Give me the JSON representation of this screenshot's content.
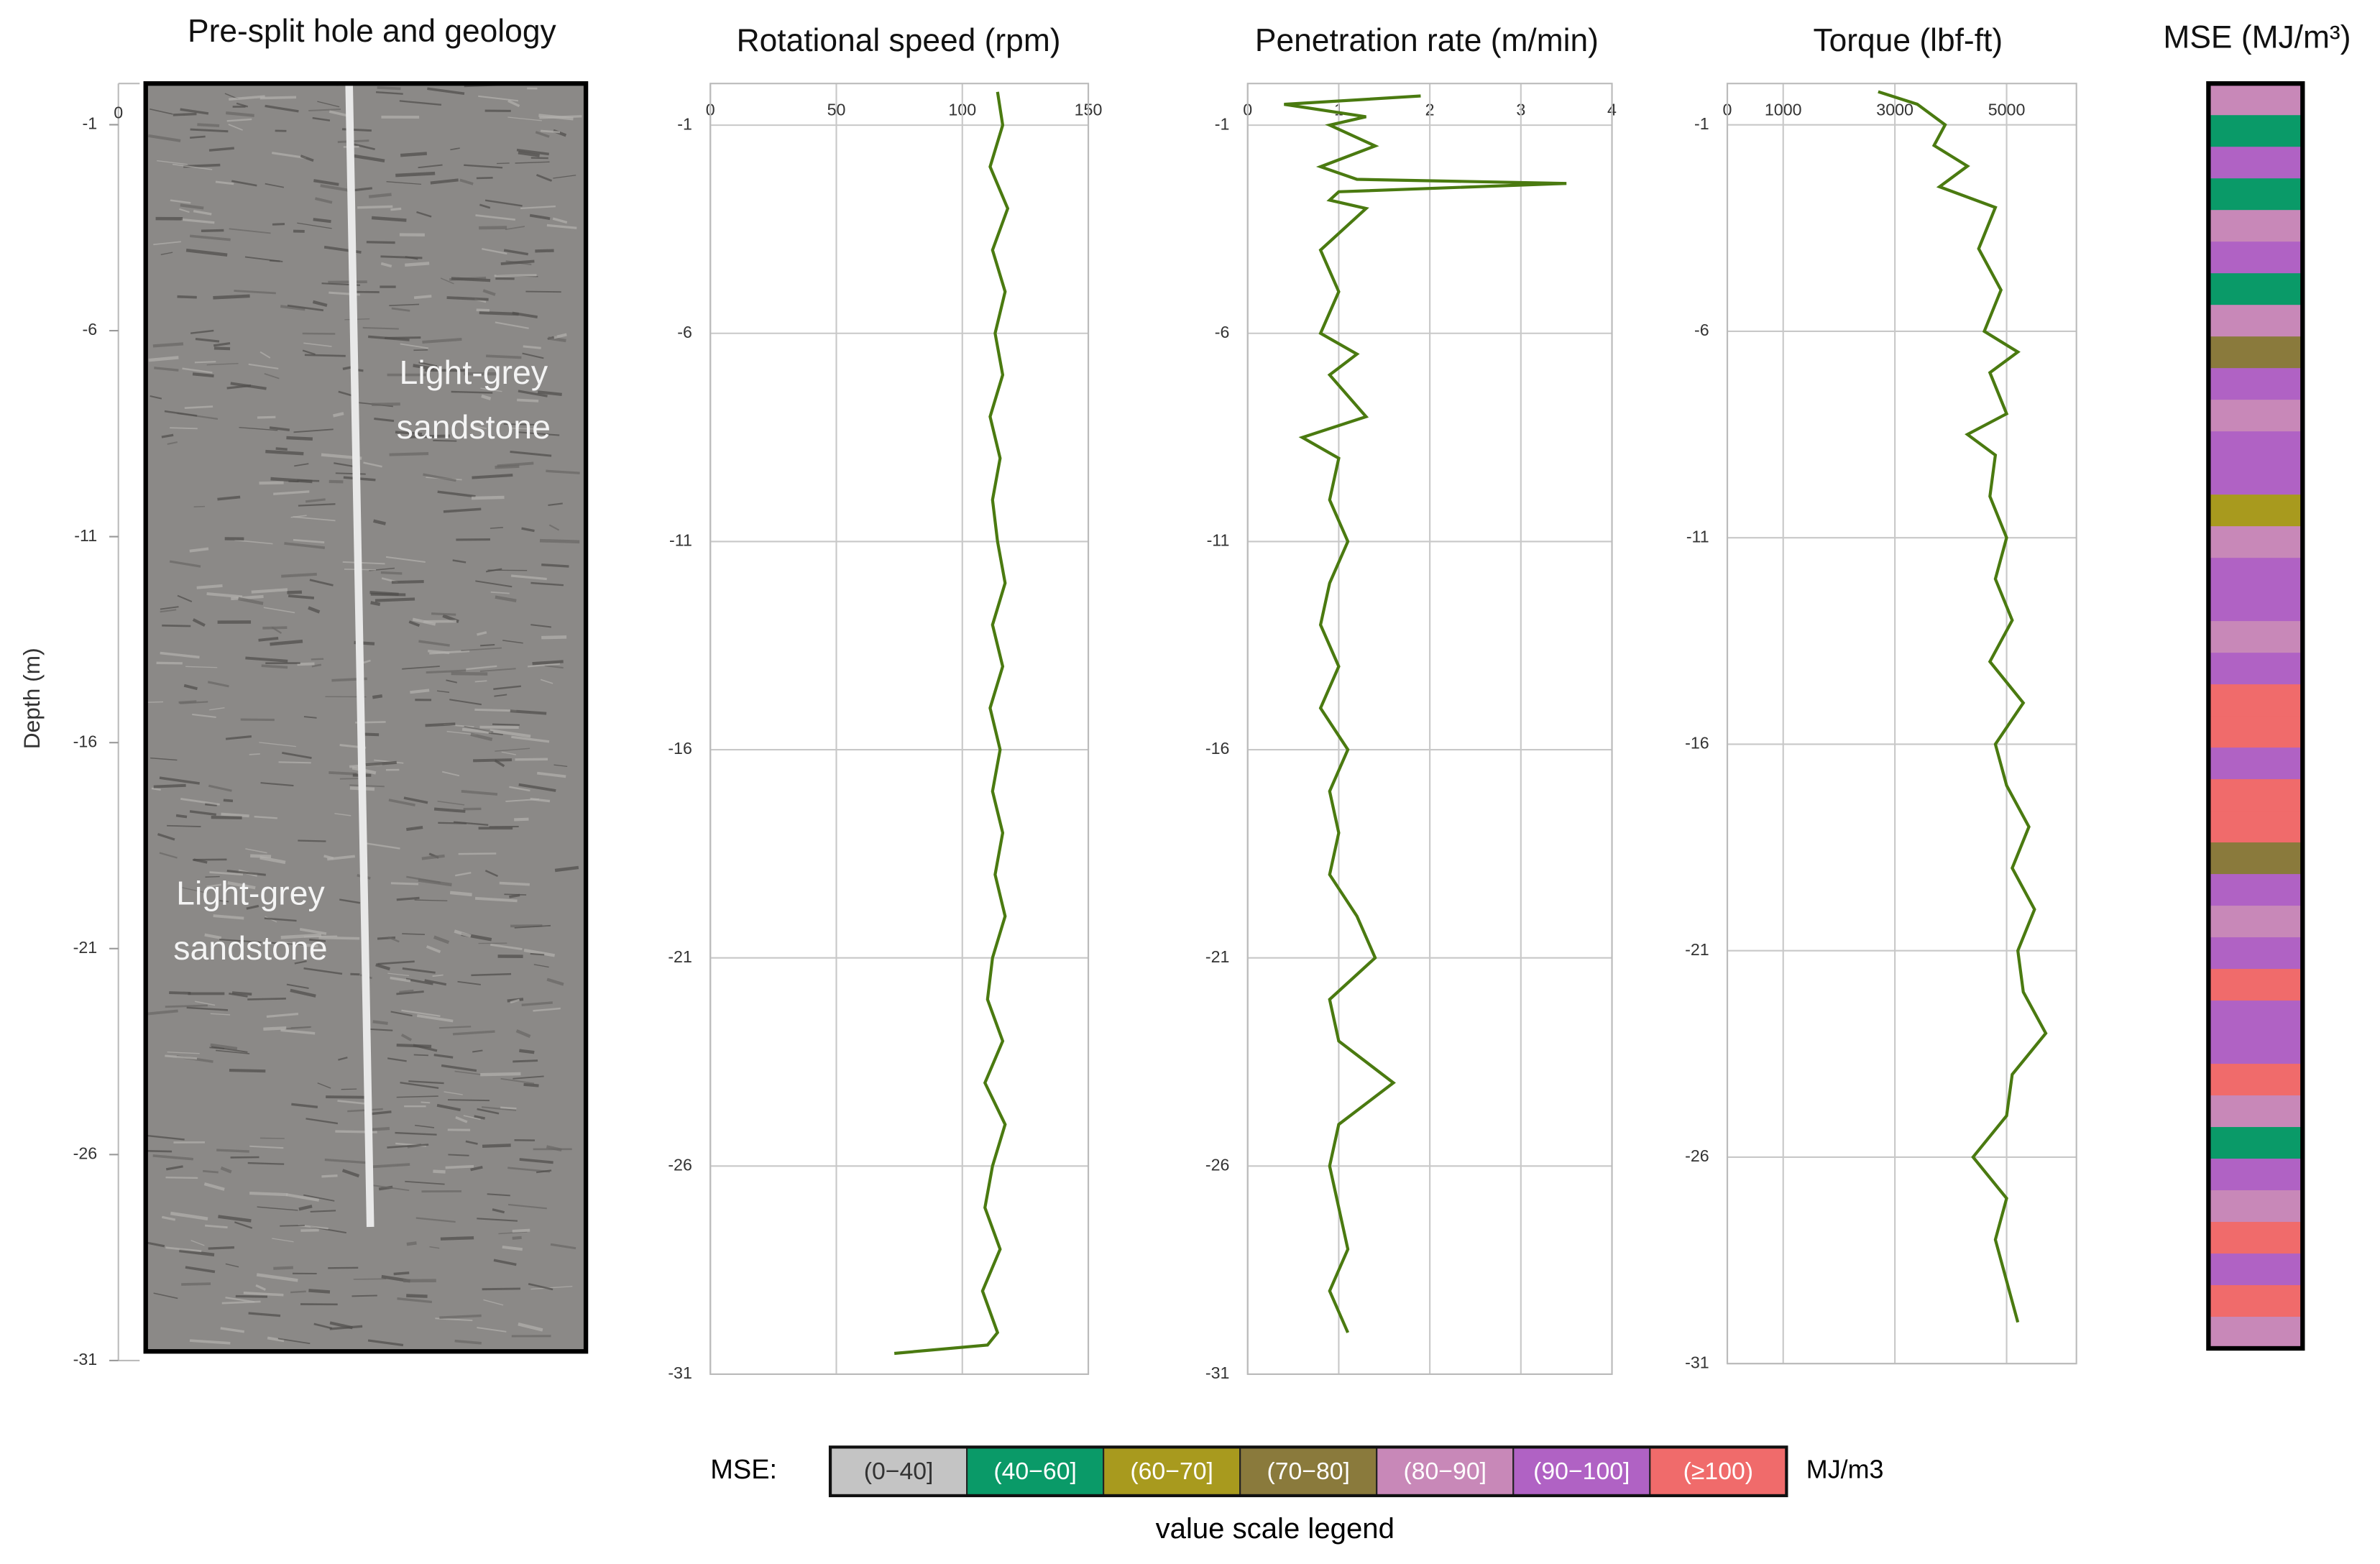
{
  "chart_data": [
    {
      "type": "image",
      "title": "Pre-split hole and geology",
      "ylabel": "Depth (m)",
      "annotations": [
        [
          "Light-grey",
          "sandstone"
        ],
        [
          "Light-grey",
          "sandstone"
        ]
      ],
      "xlim": [
        0,
        1
      ],
      "xticks": [
        0
      ],
      "ylim": [
        -31,
        0
      ],
      "yticks": [
        -1,
        -6,
        -11,
        -16,
        -21,
        -26,
        -31
      ]
    },
    {
      "type": "line",
      "title": "Rotational speed (rpm)",
      "color": "#4a7a10",
      "grid": true,
      "xlim": [
        0,
        150
      ],
      "xticks": [
        0,
        50,
        100,
        150
      ],
      "ylim": [
        -31,
        0
      ],
      "yticks": [
        -1,
        -6,
        -11,
        -16,
        -21,
        -26,
        -31
      ],
      "depth": [
        -0.2,
        -1,
        -2,
        -3,
        -4,
        -5,
        -6,
        -7,
        -8,
        -9,
        -10,
        -11,
        -12,
        -13,
        -14,
        -15,
        -16,
        -17,
        -18,
        -19,
        -20,
        -21,
        -22,
        -23,
        -24,
        -25,
        -26,
        -27,
        -28,
        -29,
        -30,
        -30.3,
        -30.5
      ],
      "values": [
        114,
        116,
        111,
        118,
        112,
        117,
        113,
        116,
        111,
        115,
        112,
        114,
        117,
        112,
        116,
        111,
        115,
        112,
        116,
        113,
        117,
        112,
        110,
        116,
        109,
        117,
        112,
        109,
        115,
        108,
        114,
        110,
        73
      ]
    },
    {
      "type": "line",
      "title": "Penetration rate (m/min)",
      "color": "#4a7a10",
      "grid": true,
      "xlim": [
        0,
        4
      ],
      "xticks": [
        0,
        1,
        2,
        3,
        4
      ],
      "ylim": [
        -31,
        0
      ],
      "yticks": [
        -1,
        -6,
        -11,
        -16,
        -21,
        -26,
        -31
      ],
      "depth": [
        -0.3,
        -0.5,
        -0.8,
        -1,
        -1.5,
        -2,
        -2.3,
        -2.4,
        -2.6,
        -2.8,
        -3,
        -4,
        -5,
        -6,
        -6.5,
        -7,
        -8,
        -8.5,
        -9,
        -10,
        -11,
        -12,
        -13,
        -14,
        -15,
        -16,
        -17,
        -18,
        -19,
        -20,
        -21,
        -22,
        -23,
        -24,
        -25,
        -26,
        -27,
        -28,
        -29,
        -30
      ],
      "values": [
        1.9,
        0.4,
        1.3,
        0.9,
        1.4,
        0.8,
        1.2,
        3.5,
        1.0,
        0.9,
        1.3,
        0.8,
        1.0,
        0.8,
        1.2,
        0.9,
        1.3,
        0.6,
        1.0,
        0.9,
        1.1,
        0.9,
        0.8,
        1.0,
        0.8,
        1.1,
        0.9,
        1.0,
        0.9,
        1.2,
        1.4,
        0.9,
        1.0,
        1.6,
        1.0,
        0.9,
        1.0,
        1.1,
        0.9,
        1.1
      ]
    },
    {
      "type": "line",
      "title": "Torque (lbf-ft)",
      "color": "#4a7a10",
      "grid": true,
      "xlim": [
        0,
        6250
      ],
      "xticks": [
        0,
        1000,
        3000,
        5000
      ],
      "ylim": [
        -31,
        0
      ],
      "yticks": [
        -1,
        -6,
        -11,
        -16,
        -21,
        -26,
        -31
      ],
      "depth": [
        -0.2,
        -0.5,
        -1,
        -1.5,
        -2,
        -2.5,
        -3,
        -4,
        -5,
        -6,
        -6.5,
        -7,
        -8,
        -8.5,
        -9,
        -10,
        -11,
        -12,
        -13,
        -14,
        -15,
        -16,
        -17,
        -18,
        -19,
        -20,
        -21,
        -22,
        -23,
        -24,
        -25,
        -26,
        -27,
        -28,
        -29,
        -30
      ],
      "values": [
        2700,
        3400,
        3900,
        3700,
        4300,
        3800,
        4800,
        4500,
        4900,
        4600,
        5200,
        4700,
        5000,
        4300,
        4800,
        4700,
        5000,
        4800,
        5100,
        4700,
        5300,
        4800,
        5000,
        5400,
        5100,
        5500,
        5200,
        5300,
        5700,
        5100,
        5000,
        4400,
        5000,
        4800,
        5000,
        5200
      ]
    },
    {
      "type": "strip",
      "title": "MSE (MJ/m³)",
      "classes": [
        4,
        1,
        5,
        1,
        4,
        5,
        1,
        4,
        3,
        5,
        4,
        5,
        5,
        2,
        4,
        5,
        5,
        4,
        5,
        6,
        6,
        5,
        6,
        6,
        3,
        5,
        4,
        5,
        6,
        5,
        5,
        6,
        4,
        1,
        5,
        4,
        6,
        5,
        6,
        4
      ],
      "legend": {
        "label": "MSE:",
        "unit": "MJ/m3",
        "caption": "value scale legend",
        "categories": [
          "(0−40]",
          "(40−60]",
          "(60−70]",
          "(70−80]",
          "(80−90]",
          "(90−100]",
          "(≥100)"
        ],
        "colors": [
          "#c4c4c4",
          "#0a9a68",
          "#a89a1e",
          "#8a7a3c",
          "#c888b8",
          "#b062c4",
          "#f06b6b"
        ],
        "text_colors": [
          "#333333",
          "#ffffff",
          "#ffffff",
          "#ffffff",
          "#ffffff",
          "#ffffff",
          "#ffffff"
        ]
      }
    }
  ]
}
